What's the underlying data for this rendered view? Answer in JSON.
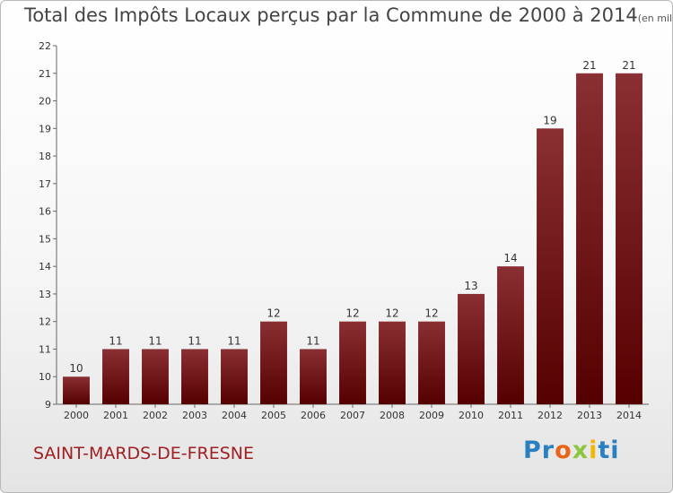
{
  "header": {
    "title": "Total des Impôts Locaux perçus par la Commune de 2000 à 2014",
    "unit": "(en milliers d'€)"
  },
  "footer": {
    "commune": "SAINT-MARDS-DE-FRESNE",
    "logo_letters": [
      "P",
      "r",
      "o",
      "x",
      "i",
      "ti"
    ]
  },
  "colors": {
    "bar_top": "#8a2f33",
    "bar_bottom": "#550000",
    "commune_text": "#a01f22"
  },
  "chart_data": {
    "type": "bar",
    "title": "Total des Impôts Locaux perçus par la Commune de 2000 à 2014",
    "categories": [
      "2000",
      "2001",
      "2002",
      "2003",
      "2004",
      "2005",
      "2006",
      "2007",
      "2008",
      "2009",
      "2010",
      "2011",
      "2012",
      "2013",
      "2014"
    ],
    "values": [
      10,
      11,
      11,
      11,
      11,
      12,
      11,
      12,
      12,
      12,
      13,
      14,
      19,
      21,
      21
    ],
    "value_labels": [
      "10",
      "11",
      "11",
      "11",
      "11",
      "12",
      "11",
      "12",
      "12",
      "12",
      "13",
      "14",
      "19",
      "21",
      "21"
    ],
    "ylim": [
      9,
      22
    ],
    "yticks": [
      9,
      10,
      11,
      12,
      13,
      14,
      15,
      16,
      17,
      18,
      19,
      20,
      21,
      22
    ],
    "grid": false,
    "legend": "none"
  }
}
